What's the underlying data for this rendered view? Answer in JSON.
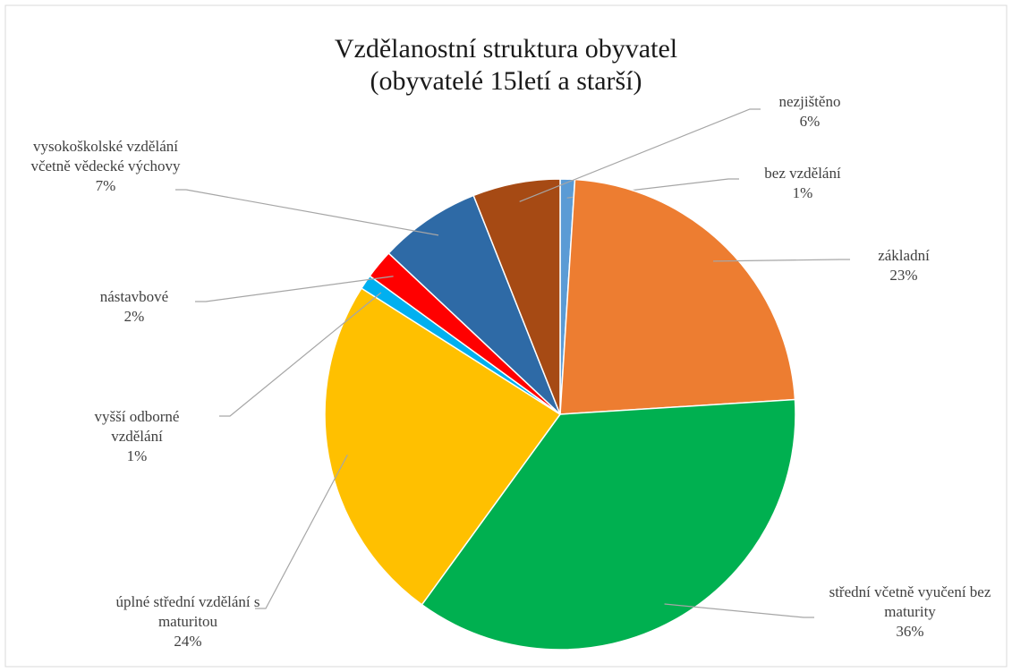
{
  "chart_data": {
    "type": "pie",
    "title": "Vzdělanostní struktura obyvatel",
    "subtitle": "(obyvatelé 15letí a starší)",
    "categories": [
      "bez vzdělání",
      "základní",
      "střední včetně vyučení bez maturity",
      "úplné střední vzdělání s maturitou",
      "vyšší odborné vzdělání",
      "nástavbové",
      "vysokoškolské vzdělání včetně vědecké výchovy",
      "nezjištěno"
    ],
    "values": [
      1,
      23,
      36,
      24,
      1,
      2,
      7,
      6
    ],
    "value_labels": [
      "1%",
      "23%",
      "36%",
      "24%",
      "1%",
      "2%",
      "7%",
      "6%"
    ],
    "colors": [
      "#5b9bd5",
      "#ed7d31",
      "#00b050",
      "#ffc000",
      "#00b0f0",
      "#ff0000",
      "#2e6aa6",
      "#a64a14"
    ]
  }
}
